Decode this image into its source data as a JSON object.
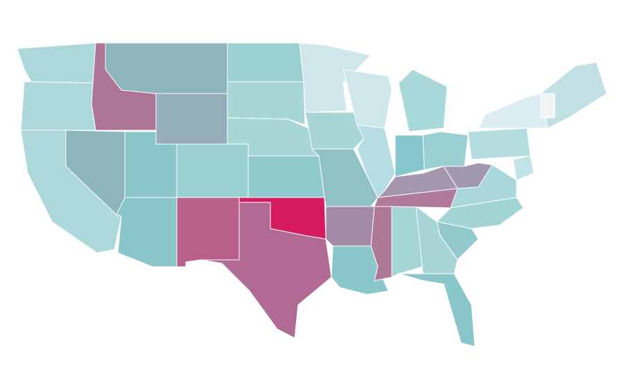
{
  "map": {
    "regions": [
      {
        "color": "#acd8db"
      },
      {
        "color": "#acd8db"
      },
      {
        "color": "#acd8db"
      },
      {
        "color": "#ad7595"
      },
      {
        "color": "#8eb5bd"
      },
      {
        "color": "#8eb5bd"
      },
      {
        "color": "#94aebb"
      },
      {
        "color": "#8bc6cb"
      },
      {
        "color": "#8bc6cb"
      },
      {
        "color": "#9bd0d2"
      },
      {
        "color": "#b8608a"
      },
      {
        "color": "#9bd0d2"
      },
      {
        "color": "#a8d6d7"
      },
      {
        "color": "#a8d6d7"
      },
      {
        "color": "#90cacd"
      },
      {
        "color": "#d71b60"
      },
      {
        "color": "#b06a93"
      },
      {
        "color": "#cfe7ea"
      },
      {
        "color": "#a8d6d7"
      },
      {
        "color": "#90c1c4"
      },
      {
        "color": "#a58aa5"
      },
      {
        "color": "#8bc6cb"
      },
      {
        "color": "#cfe7ea"
      },
      {
        "color": "#b6dde3"
      },
      {
        "color": "#ae7997"
      },
      {
        "color": "#a5d6d5"
      },
      {
        "color": "#b07b9b"
      },
      {
        "color": "#a496ad"
      },
      {
        "color": "#85c6cc"
      },
      {
        "color": "#99cfd2"
      },
      {
        "color": "#a9d8db"
      },
      {
        "color": "#a098b1"
      },
      {
        "color": "#a8d6da"
      },
      {
        "color": "#a3d4d4"
      },
      {
        "color": "#92c9cb"
      },
      {
        "color": "#a8d6d7"
      },
      {
        "color": "#8bc6cb"
      },
      {
        "color": "#b4dde0"
      },
      {
        "color": "#dcedf1"
      },
      {
        "color": "#bfe3e6"
      },
      {
        "color": "#c0e0e3"
      },
      {
        "color": "#f1f3f4"
      }
    ]
  }
}
